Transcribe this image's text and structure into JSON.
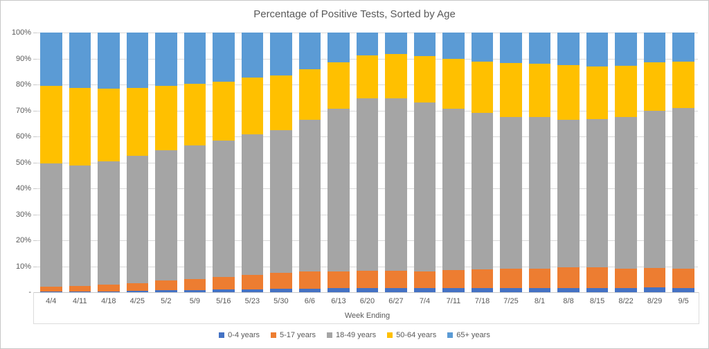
{
  "chart_data": {
    "type": "bar",
    "stacked": true,
    "percent_stacked": true,
    "title": "Percentage of Positive Tests, Sorted by Age",
    "xlabel": "Week Ending",
    "ylabel": "",
    "ylim": [
      0,
      100
    ],
    "grid": true,
    "legend_position": "bottom",
    "y_ticks": [
      {
        "value": 100,
        "label": "100%"
      },
      {
        "value": 90,
        "label": "90%"
      },
      {
        "value": 80,
        "label": "80%"
      },
      {
        "value": 70,
        "label": "70%"
      },
      {
        "value": 60,
        "label": "60%"
      },
      {
        "value": 50,
        "label": "50%"
      },
      {
        "value": 40,
        "label": "40%"
      },
      {
        "value": 30,
        "label": "30%"
      },
      {
        "value": 20,
        "label": "20%"
      },
      {
        "value": 10,
        "label": "10%"
      },
      {
        "value": 0,
        "label": "-"
      }
    ],
    "categories": [
      "4/4",
      "4/11",
      "4/18",
      "4/25",
      "5/2",
      "5/9",
      "5/16",
      "5/23",
      "5/30",
      "6/6",
      "6/13",
      "6/20",
      "6/27",
      "7/4",
      "7/11",
      "7/18",
      "7/25",
      "8/1",
      "8/8",
      "8/15",
      "8/22",
      "8/29",
      "9/5"
    ],
    "series": [
      {
        "name": "0-4 years",
        "color": "#4472C4",
        "values": [
          0.4,
          0.4,
          0.4,
          0.5,
          0.7,
          0.9,
          1.0,
          1.2,
          1.3,
          1.4,
          1.5,
          1.6,
          1.6,
          1.5,
          1.5,
          1.5,
          1.6,
          1.6,
          1.7,
          1.7,
          1.7,
          1.8,
          1.7
        ]
      },
      {
        "name": "5-17 years",
        "color": "#ED7D31",
        "values": [
          1.8,
          2.0,
          2.5,
          3.1,
          3.8,
          4.3,
          4.9,
          5.4,
          6.1,
          6.5,
          6.5,
          6.6,
          6.6,
          6.5,
          7.0,
          7.3,
          7.4,
          7.5,
          7.8,
          7.9,
          7.5,
          7.6,
          7.3
        ]
      },
      {
        "name": "18-49 years",
        "color": "#A5A5A5",
        "values": [
          47.4,
          46.5,
          47.5,
          48.9,
          50.3,
          51.4,
          52.5,
          54.3,
          55.0,
          58.4,
          62.8,
          66.6,
          66.6,
          65.0,
          62.2,
          60.4,
          58.6,
          58.3,
          57.0,
          57.0,
          58.3,
          60.5,
          62.0
        ]
      },
      {
        "name": "50-64 years",
        "color": "#FFC000",
        "values": [
          29.9,
          29.7,
          27.9,
          26.1,
          24.7,
          23.7,
          22.6,
          21.9,
          21.1,
          19.5,
          17.7,
          16.4,
          16.9,
          18.0,
          19.3,
          19.6,
          20.6,
          20.5,
          21.0,
          20.4,
          19.7,
          18.7,
          17.9
        ]
      },
      {
        "name": "65+ years",
        "color": "#5B9BD5",
        "values": [
          20.5,
          21.4,
          21.7,
          21.4,
          20.5,
          19.7,
          19.0,
          17.2,
          16.5,
          14.2,
          11.5,
          8.8,
          8.3,
          9.0,
          10.0,
          11.2,
          11.8,
          12.1,
          12.5,
          13.0,
          12.8,
          11.4,
          11.1
        ]
      }
    ],
    "colors": {
      "gridline": "#D9D9D9",
      "axis_line": "#C9C9C9",
      "text": "#595959",
      "frame_border": "#C6C6C6"
    }
  }
}
